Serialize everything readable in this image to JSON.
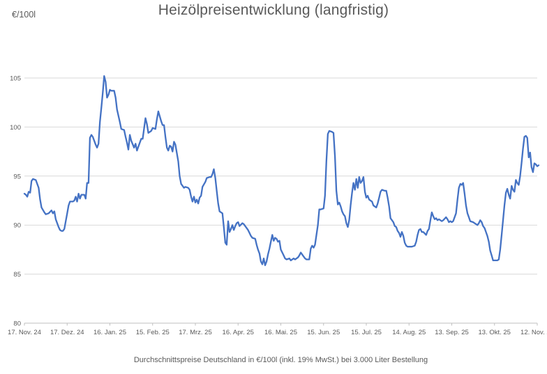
{
  "header": {
    "title": "Heizölpreisentwicklung (langfristig)",
    "y_axis_unit": "€/100l"
  },
  "footer": {
    "caption": "Durchschnittspreise Deutschland in €/100l (inkl. 19% MwSt.) bei 3.000 Liter Bestellung"
  },
  "colors": {
    "line": "#4472C4",
    "grid": "#D9D9D9",
    "axis": "#BFBFBF",
    "text": "#595959",
    "background": "#FFFFFF"
  },
  "chart_data": {
    "type": "line",
    "title": "Heizölpreisentwicklung (langfristig)",
    "ylabel": "€/100l",
    "xlabel": "",
    "ylim": [
      80,
      105
    ],
    "y_ticks": [
      105,
      100,
      95,
      90,
      85,
      80
    ],
    "x_tick_labels": [
      "17. Nov. 24",
      "17. Dez. 24",
      "16. Jan. 25",
      "15. Feb. 25",
      "17. Mrz. 25",
      "16. Apr. 25",
      "16. Mai. 25",
      "15. Jun. 25",
      "15. Jul. 25",
      "14. Aug. 25",
      "13. Sep. 25",
      "13. Okt. 25",
      "12. Nov. 25"
    ],
    "x_tick_interval_days": 30,
    "x_unit": "days since 17. Nov. 24",
    "grid": "horizontal",
    "legend": "none",
    "points": [
      [
        0,
        93.2
      ],
      [
        1,
        93.1
      ],
      [
        2,
        92.9
      ],
      [
        3,
        93.4
      ],
      [
        4,
        93.3
      ],
      [
        5,
        94.5
      ],
      [
        6,
        94.7
      ],
      [
        8,
        94.6
      ],
      [
        10,
        93.8
      ],
      [
        11,
        92.6
      ],
      [
        12,
        91.8
      ],
      [
        14,
        91.3
      ],
      [
        15,
        91.1
      ],
      [
        17,
        91.2
      ],
      [
        19,
        91.5
      ],
      [
        20,
        91.2
      ],
      [
        21,
        91.4
      ],
      [
        22,
        90.6
      ],
      [
        24,
        89.8
      ],
      [
        25,
        89.5
      ],
      [
        26,
        89.4
      ],
      [
        27,
        89.4
      ],
      [
        28,
        89.6
      ],
      [
        30,
        91.2
      ],
      [
        31,
        92.0
      ],
      [
        32,
        92.4
      ],
      [
        34,
        92.4
      ],
      [
        35,
        92.5
      ],
      [
        36,
        92.9
      ],
      [
        37,
        92.4
      ],
      [
        38,
        93.2
      ],
      [
        39,
        92.7
      ],
      [
        40,
        93.1
      ],
      [
        42,
        93.1
      ],
      [
        43,
        92.7
      ],
      [
        44,
        94.3
      ],
      [
        45,
        94.3
      ],
      [
        46,
        98.9
      ],
      [
        47,
        99.2
      ],
      [
        48,
        99.0
      ],
      [
        50,
        98.2
      ],
      [
        51,
        97.9
      ],
      [
        52,
        98.3
      ],
      [
        53,
        100.5
      ],
      [
        54,
        102.0
      ],
      [
        55,
        103.5
      ],
      [
        56,
        105.2
      ],
      [
        57,
        104.6
      ],
      [
        58,
        103.0
      ],
      [
        59,
        103.3
      ],
      [
        60,
        103.8
      ],
      [
        61,
        103.7
      ],
      [
        63,
        103.7
      ],
      [
        64,
        103.0
      ],
      [
        65,
        101.8
      ],
      [
        67,
        100.5
      ],
      [
        68,
        99.8
      ],
      [
        70,
        99.7
      ],
      [
        71,
        99.0
      ],
      [
        72,
        98.4
      ],
      [
        73,
        97.7
      ],
      [
        74,
        99.2
      ],
      [
        75,
        98.6
      ],
      [
        77,
        97.9
      ],
      [
        78,
        98.3
      ],
      [
        79,
        97.6
      ],
      [
        80,
        98.0
      ],
      [
        82,
        98.8
      ],
      [
        83,
        98.8
      ],
      [
        85,
        100.9
      ],
      [
        86,
        100.3
      ],
      [
        87,
        99.4
      ],
      [
        89,
        99.6
      ],
      [
        90,
        99.9
      ],
      [
        92,
        99.8
      ],
      [
        93,
        100.8
      ],
      [
        94,
        101.6
      ],
      [
        96,
        100.6
      ],
      [
        97,
        100.2
      ],
      [
        98,
        100.2
      ],
      [
        99,
        99.0
      ],
      [
        100,
        97.9
      ],
      [
        101,
        97.6
      ],
      [
        102,
        98.1
      ],
      [
        103,
        98.0
      ],
      [
        104,
        97.5
      ],
      [
        105,
        98.5
      ],
      [
        106,
        98.2
      ],
      [
        108,
        96.5
      ],
      [
        109,
        95.0
      ],
      [
        110,
        94.2
      ],
      [
        112,
        93.8
      ],
      [
        113,
        93.9
      ],
      [
        115,
        93.8
      ],
      [
        116,
        93.6
      ],
      [
        117,
        92.9
      ],
      [
        118,
        92.4
      ],
      [
        119,
        92.9
      ],
      [
        120,
        92.3
      ],
      [
        121,
        92.6
      ],
      [
        122,
        92.2
      ],
      [
        123,
        92.8
      ],
      [
        124,
        93.0
      ],
      [
        125,
        93.9
      ],
      [
        127,
        94.4
      ],
      [
        128,
        94.8
      ],
      [
        130,
        94.9
      ],
      [
        131,
        94.9
      ],
      [
        132,
        95.2
      ],
      [
        133,
        95.7
      ],
      [
        134,
        94.8
      ],
      [
        135,
        93.5
      ],
      [
        136,
        92.2
      ],
      [
        137,
        91.4
      ],
      [
        138,
        91.3
      ],
      [
        139,
        91.2
      ],
      [
        140,
        89.8
      ],
      [
        141,
        88.2
      ],
      [
        142,
        88.0
      ],
      [
        143,
        90.4
      ],
      [
        144,
        89.3
      ],
      [
        145,
        89.6
      ],
      [
        146,
        90.0
      ],
      [
        147,
        89.5
      ],
      [
        148,
        89.9
      ],
      [
        149,
        90.2
      ],
      [
        150,
        90.3
      ],
      [
        151,
        89.9
      ],
      [
        153,
        90.2
      ],
      [
        154,
        90.1
      ],
      [
        156,
        89.7
      ],
      [
        157,
        89.5
      ],
      [
        158,
        89.2
      ],
      [
        159,
        88.9
      ],
      [
        160,
        88.7
      ],
      [
        162,
        88.6
      ],
      [
        163,
        88.0
      ],
      [
        164,
        87.5
      ],
      [
        165,
        87.1
      ],
      [
        166,
        86.3
      ],
      [
        167,
        86.0
      ],
      [
        168,
        86.6
      ],
      [
        169,
        85.9
      ],
      [
        170,
        86.3
      ],
      [
        171,
        87.0
      ],
      [
        172,
        87.6
      ],
      [
        173,
        88.3
      ],
      [
        174,
        89.0
      ],
      [
        175,
        88.4
      ],
      [
        176,
        88.7
      ],
      [
        177,
        88.6
      ],
      [
        178,
        88.3
      ],
      [
        179,
        88.4
      ],
      [
        180,
        87.5
      ],
      [
        182,
        86.9
      ],
      [
        183,
        86.6
      ],
      [
        184,
        86.5
      ],
      [
        186,
        86.6
      ],
      [
        187,
        86.4
      ],
      [
        189,
        86.6
      ],
      [
        190,
        86.5
      ],
      [
        192,
        86.7
      ],
      [
        193,
        86.9
      ],
      [
        194,
        87.2
      ],
      [
        195,
        87.0
      ],
      [
        197,
        86.6
      ],
      [
        198,
        86.5
      ],
      [
        200,
        86.5
      ],
      [
        201,
        87.6
      ],
      [
        202,
        87.9
      ],
      [
        203,
        87.7
      ],
      [
        204,
        88.0
      ],
      [
        206,
        90.0
      ],
      [
        207,
        91.6
      ],
      [
        208,
        91.6
      ],
      [
        210,
        91.7
      ],
      [
        211,
        93.0
      ],
      [
        212,
        96.5
      ],
      [
        213,
        99.3
      ],
      [
        214,
        99.6
      ],
      [
        216,
        99.5
      ],
      [
        217,
        99.4
      ],
      [
        218,
        97.0
      ],
      [
        219,
        93.5
      ],
      [
        220,
        92.1
      ],
      [
        221,
        92.3
      ],
      [
        222,
        91.9
      ],
      [
        223,
        91.4
      ],
      [
        224,
        91.1
      ],
      [
        225,
        90.9
      ],
      [
        226,
        90.2
      ],
      [
        227,
        89.8
      ],
      [
        228,
        90.5
      ],
      [
        229,
        92.0
      ],
      [
        230,
        93.3
      ],
      [
        231,
        94.3
      ],
      [
        232,
        93.6
      ],
      [
        233,
        94.7
      ],
      [
        234,
        93.8
      ],
      [
        235,
        94.9
      ],
      [
        236,
        94.3
      ],
      [
        237,
        94.5
      ],
      [
        238,
        94.9
      ],
      [
        239,
        93.4
      ],
      [
        240,
        92.8
      ],
      [
        241,
        93.0
      ],
      [
        242,
        92.6
      ],
      [
        243,
        92.5
      ],
      [
        244,
        92.4
      ],
      [
        245,
        92.0
      ],
      [
        247,
        91.8
      ],
      [
        248,
        92.2
      ],
      [
        249,
        92.8
      ],
      [
        250,
        93.4
      ],
      [
        251,
        93.6
      ],
      [
        253,
        93.5
      ],
      [
        254,
        93.5
      ],
      [
        255,
        92.8
      ],
      [
        256,
        91.9
      ],
      [
        257,
        90.7
      ],
      [
        259,
        90.3
      ],
      [
        260,
        89.9
      ],
      [
        261,
        89.8
      ],
      [
        262,
        89.4
      ],
      [
        263,
        89.2
      ],
      [
        264,
        88.8
      ],
      [
        265,
        89.3
      ],
      [
        266,
        88.9
      ],
      [
        267,
        88.2
      ],
      [
        268,
        87.9
      ],
      [
        269,
        87.8
      ],
      [
        271,
        87.8
      ],
      [
        272,
        87.8
      ],
      [
        274,
        87.9
      ],
      [
        275,
        88.3
      ],
      [
        276,
        89.0
      ],
      [
        277,
        89.5
      ],
      [
        278,
        89.6
      ],
      [
        279,
        89.3
      ],
      [
        280,
        89.3
      ],
      [
        282,
        89.0
      ],
      [
        283,
        89.4
      ],
      [
        284,
        89.6
      ],
      [
        285,
        90.5
      ],
      [
        286,
        91.3
      ],
      [
        287,
        90.9
      ],
      [
        288,
        90.6
      ],
      [
        289,
        90.7
      ],
      [
        290,
        90.5
      ],
      [
        291,
        90.6
      ],
      [
        293,
        90.4
      ],
      [
        294,
        90.5
      ],
      [
        296,
        90.8
      ],
      [
        297,
        90.6
      ],
      [
        298,
        90.3
      ],
      [
        299,
        90.4
      ],
      [
        300,
        90.3
      ],
      [
        301,
        90.4
      ],
      [
        303,
        91.2
      ],
      [
        304,
        92.6
      ],
      [
        305,
        93.8
      ],
      [
        306,
        94.2
      ],
      [
        307,
        94.1
      ],
      [
        308,
        94.3
      ],
      [
        309,
        93.2
      ],
      [
        310,
        92.0
      ],
      [
        311,
        91.2
      ],
      [
        312,
        90.8
      ],
      [
        313,
        90.4
      ],
      [
        315,
        90.3
      ],
      [
        316,
        90.2
      ],
      [
        318,
        90.0
      ],
      [
        319,
        90.2
      ],
      [
        320,
        90.5
      ],
      [
        321,
        90.3
      ],
      [
        322,
        89.9
      ],
      [
        323,
        89.7
      ],
      [
        325,
        88.9
      ],
      [
        326,
        88.3
      ],
      [
        327,
        87.4
      ],
      [
        328,
        86.9
      ],
      [
        329,
        86.4
      ],
      [
        331,
        86.4
      ],
      [
        332,
        86.4
      ],
      [
        333,
        86.5
      ],
      [
        334,
        87.5
      ],
      [
        335,
        89.0
      ],
      [
        336,
        90.5
      ],
      [
        337,
        92.0
      ],
      [
        338,
        93.3
      ],
      [
        339,
        93.7
      ],
      [
        340,
        93.1
      ],
      [
        341,
        92.7
      ],
      [
        342,
        94.0
      ],
      [
        343,
        93.6
      ],
      [
        344,
        93.4
      ],
      [
        345,
        94.6
      ],
      [
        346,
        94.3
      ],
      [
        347,
        94.1
      ],
      [
        348,
        95.0
      ],
      [
        349,
        96.3
      ],
      [
        350,
        97.8
      ],
      [
        351,
        99.0
      ],
      [
        352,
        99.1
      ],
      [
        353,
        98.9
      ],
      [
        354,
        96.9
      ],
      [
        355,
        97.4
      ],
      [
        356,
        95.9
      ],
      [
        357,
        95.4
      ],
      [
        358,
        96.3
      ],
      [
        359,
        96.2
      ],
      [
        360,
        96.0
      ],
      [
        361,
        96.1
      ]
    ]
  }
}
